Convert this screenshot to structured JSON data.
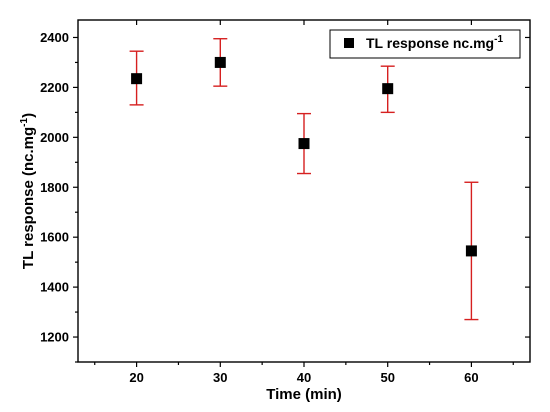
{
  "chart_data": {
    "type": "scatter",
    "xlabel": "Time (min)",
    "ylabel": "TL response (nc.mg",
    "ylabel_sup": "-1",
    "ylabel_close": ")",
    "xlim": [
      13,
      67
    ],
    "ylim": [
      1100,
      2470
    ],
    "x_ticks": [
      20,
      30,
      40,
      50,
      60
    ],
    "y_ticks": [
      1200,
      1400,
      1600,
      1800,
      2000,
      2200,
      2400
    ],
    "grid": false,
    "legend_position": "top-right",
    "series": [
      {
        "name": "TL response nc.mg",
        "name_sup": "-1",
        "marker": "square",
        "color": "#000000",
        "error_bar_color": "#d62020",
        "points": [
          {
            "x": 20,
            "y": 2235,
            "err_low": 2130,
            "err_high": 2345
          },
          {
            "x": 30,
            "y": 2300,
            "err_low": 2205,
            "err_high": 2395
          },
          {
            "x": 40,
            "y": 1975,
            "err_low": 1855,
            "err_high": 2095
          },
          {
            "x": 50,
            "y": 2195,
            "err_low": 2100,
            "err_high": 2285
          },
          {
            "x": 60,
            "y": 1545,
            "err_low": 1270,
            "err_high": 1820
          }
        ]
      }
    ]
  }
}
